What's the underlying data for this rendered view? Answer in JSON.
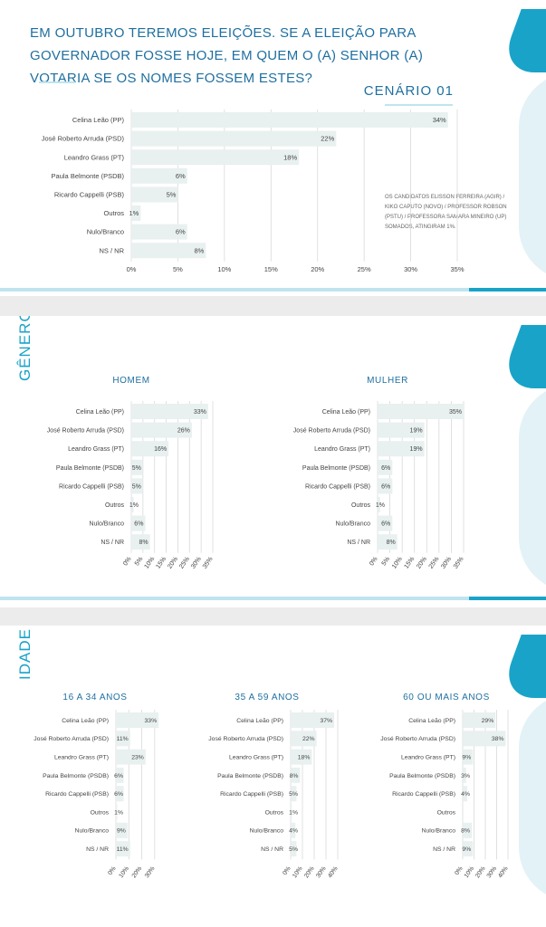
{
  "page": {
    "title": "EM OUTUBRO TEREMOS ELEIÇÕES. SE A ELEIÇÃO PARA GOVERNADOR FOSSE HOJE, EM QUEM O (A) SENHOR (A) VOTARIA SE OS NOMES FOSSEM ESTES?",
    "scenario": "CENÁRIO 01",
    "note": "OS CANDIDATOS ELISSON FERREIRA (AGIR) / KIKO CAPUTO (NOVO) / PROFESSOR ROBSON (PSTU) / PROFESSORA SAMARA MINEIRO (UP) SOMADOS, ATINGIRAM 1%.",
    "section_gender": "GÊNERO",
    "section_age": "IDADE"
  },
  "colors": {
    "accent": "#1aa3c8",
    "title": "#1e6fa0",
    "bar": "#e8f0f0"
  },
  "chart_data": [
    {
      "type": "bar",
      "orientation": "horizontal",
      "title": "CENÁRIO 01",
      "categories": [
        "Celina Leão (PP)",
        "José Roberto Arruda (PSD)",
        "Leandro Grass (PT)",
        "Paula Belmonte (PSDB)",
        "Ricardo Cappelli (PSB)",
        "Outros",
        "Nulo/Branco",
        "NS / NR"
      ],
      "values": [
        34,
        22,
        18,
        6,
        5,
        1,
        6,
        8
      ],
      "value_labels": [
        "34%",
        "22%",
        "18%",
        "6%",
        "5%",
        "1%",
        "6%",
        "8%"
      ],
      "xticks": [
        "0%",
        "5%",
        "10%",
        "15%",
        "20%",
        "25%",
        "30%",
        "35%"
      ],
      "xlim": [
        0,
        35
      ]
    },
    {
      "type": "bar",
      "orientation": "horizontal",
      "title": "HOMEM",
      "categories": [
        "Celina Leão (PP)",
        "José Roberto Arruda (PSD)",
        "Leandro Grass (PT)",
        "Paula Belmonte (PSDB)",
        "Ricardo Cappelli (PSB)",
        "Outros",
        "Nulo/Branco",
        "NS / NR"
      ],
      "values": [
        33,
        26,
        16,
        5,
        5,
        1,
        6,
        8
      ],
      "value_labels": [
        "33%",
        "26%",
        "16%",
        "5%",
        "5%",
        "1%",
        "6%",
        "8%"
      ],
      "xticks": [
        "0%",
        "5%",
        "10%",
        "15%",
        "20%",
        "25%",
        "30%",
        "35%"
      ],
      "xlim": [
        0,
        35
      ]
    },
    {
      "type": "bar",
      "orientation": "horizontal",
      "title": "MULHER",
      "categories": [
        "Celina Leão (PP)",
        "José Roberto Arruda (PSD)",
        "Leandro Grass (PT)",
        "Paula Belmonte (PSDB)",
        "Ricardo Cappelli (PSB)",
        "Outros",
        "Nulo/Branco",
        "NS / NR"
      ],
      "values": [
        35,
        19,
        19,
        6,
        6,
        1,
        6,
        8
      ],
      "value_labels": [
        "35%",
        "19%",
        "19%",
        "6%",
        "6%",
        "1%",
        "6%",
        "8%"
      ],
      "xticks": [
        "0%",
        "5%",
        "10%",
        "15%",
        "20%",
        "25%",
        "30%",
        "35%"
      ],
      "xlim": [
        0,
        35
      ]
    },
    {
      "type": "bar",
      "orientation": "horizontal",
      "title": "16 A 34 ANOS",
      "categories": [
        "Celina Leão (PP)",
        "José Roberto Arruda (PSD)",
        "Leandro Grass (PT)",
        "Paula Belmonte (PSDB)",
        "Ricardo Cappelli (PSB)",
        "Outros",
        "Nulo/Branco",
        "NS / NR"
      ],
      "values": [
        33,
        11,
        23,
        6,
        6,
        1,
        9,
        11
      ],
      "value_labels": [
        "33%",
        "11%",
        "23%",
        "6%",
        "6%",
        "1%",
        "9%",
        "11%"
      ],
      "xticks": [
        "0%",
        "10%",
        "20%",
        "30%"
      ],
      "xlim": [
        0,
        35
      ]
    },
    {
      "type": "bar",
      "orientation": "horizontal",
      "title": "35 A 59 ANOS",
      "categories": [
        "Celina Leão (PP)",
        "José Roberto Arruda (PSD)",
        "Leandro Grass (PT)",
        "Paula Belmonte (PSDB)",
        "Ricardo Cappelli (PSB)",
        "Outros",
        "Nulo/Branco",
        "NS / NR"
      ],
      "values": [
        37,
        22,
        18,
        8,
        5,
        1,
        4,
        5
      ],
      "value_labels": [
        "37%",
        "22%",
        "18%",
        "8%",
        "5%",
        "1%",
        "4%",
        "5%"
      ],
      "xticks": [
        "0%",
        "10%",
        "20%",
        "30%",
        "40%"
      ],
      "xlim": [
        0,
        40
      ]
    },
    {
      "type": "bar",
      "orientation": "horizontal",
      "title": "60 OU MAIS ANOS",
      "categories": [
        "Celina Leão (PP)",
        "José Roberto Arruda (PSD)",
        "Leandro Grass (PT)",
        "Paula Belmonte (PSDB)",
        "Ricardo Cappelli (PSB)",
        "Outros",
        "Nulo/Branco",
        "NS / NR"
      ],
      "values": [
        29,
        38,
        9,
        3,
        4,
        0,
        8,
        9
      ],
      "value_labels": [
        "29%",
        "38%",
        "9%",
        "3%",
        "4%",
        "",
        "8%",
        "9%"
      ],
      "xticks": [
        "0%",
        "10%",
        "20%",
        "30%",
        "40%"
      ],
      "xlim": [
        0,
        40
      ]
    }
  ]
}
